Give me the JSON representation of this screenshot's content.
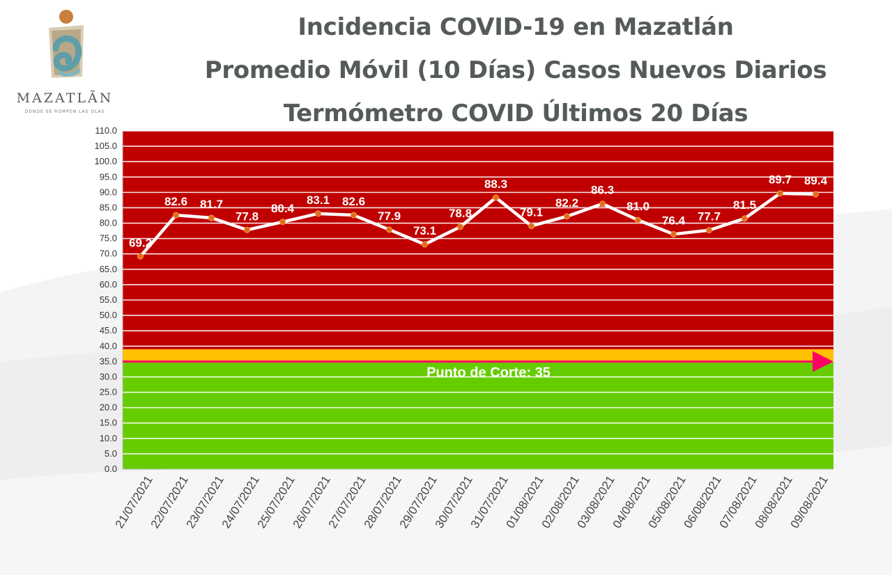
{
  "header": {
    "title_line1": "Incidencia COVID-19 en Mazatlán",
    "title_line2": "Promedio Móvil (10 Días) Casos Nuevos Diarios",
    "title_line3": "Termómetro COVID Últimos 20 Días"
  },
  "logo": {
    "wordmark": "MAZATLĀN",
    "tagline": "DONDE SE ROMPEN LAS OLAS"
  },
  "colors": {
    "red_zone": "#c00000",
    "yellow_band": "#ffc000",
    "green_zone": "#66cc00",
    "line": "#ffffff",
    "marker": "#e36c1a",
    "cutoff_line": "#ff0066",
    "title": "#555a5a"
  },
  "chart_data": {
    "type": "line",
    "categories": [
      "21/07/2021",
      "22/07/2021",
      "23/07/2021",
      "24/07/2021",
      "25/07/2021",
      "26/07/2021",
      "27/07/2021",
      "28/07/2021",
      "29/07/2021",
      "30/07/2021",
      "31/07/2021",
      "01/08/2021",
      "02/08/2021",
      "03/08/2021",
      "04/08/2021",
      "05/08/2021",
      "06/08/2021",
      "07/08/2021",
      "08/08/2021",
      "09/08/2021"
    ],
    "values": [
      69.2,
      82.6,
      81.7,
      77.8,
      80.4,
      83.1,
      82.6,
      77.9,
      73.1,
      78.8,
      88.3,
      79.1,
      82.2,
      86.3,
      81.0,
      76.4,
      77.7,
      81.5,
      89.7,
      89.4
    ],
    "data_labels": [
      "69.2",
      "82.6",
      "81.7",
      "77.8",
      "80.4",
      "83.1",
      "82.6",
      "77.9",
      "73.1",
      "78.8",
      "88.3",
      "79.1",
      "82.2",
      "86.3",
      "81.0",
      "76.4",
      "77.7",
      "81.5",
      "89.7",
      "89.4"
    ],
    "ylim": [
      0,
      110
    ],
    "ytick_step": 5,
    "ytick_labels": [
      "0.0",
      "5.0",
      "10.0",
      "15.0",
      "20.0",
      "25.0",
      "30.0",
      "35.0",
      "40.0",
      "45.0",
      "50.0",
      "55.0",
      "60.0",
      "65.0",
      "70.0",
      "75.0",
      "80.0",
      "85.0",
      "90.0",
      "95.0",
      "100.0",
      "105.0",
      "110.0"
    ],
    "zones": [
      {
        "from": 0,
        "to": 35,
        "color": "#66cc00"
      },
      {
        "from": 35,
        "to": 39,
        "color": "#ffc000"
      },
      {
        "from": 39,
        "to": 110,
        "color": "#c00000"
      }
    ],
    "cutoff": {
      "value": 35,
      "label": "Punto de Corte: 35"
    },
    "grid": true,
    "title": "",
    "xlabel": "",
    "ylabel": ""
  }
}
